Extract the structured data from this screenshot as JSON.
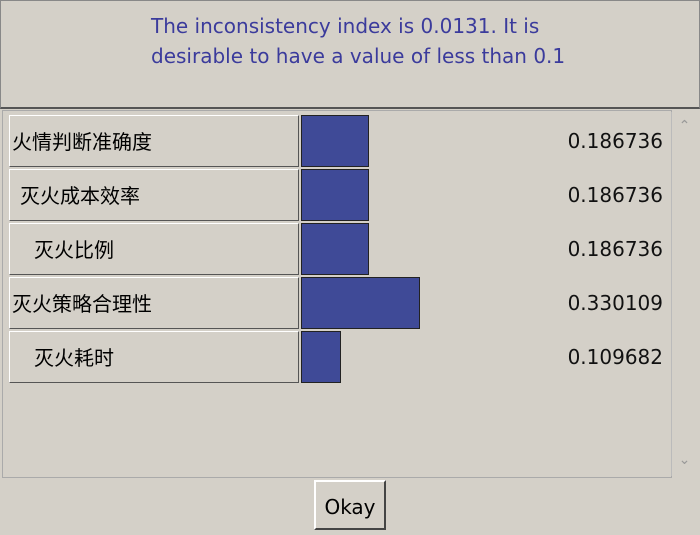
{
  "message": "The inconsistency index is 0.0131.  It is desirable to have a value of less than 0.1",
  "rows": [
    {
      "label": "火情判断准确度",
      "value": 0.186736
    },
    {
      "label": "灭火成本效率",
      "value": 0.186736
    },
    {
      "label": "灭火比例",
      "value": 0.186736
    },
    {
      "label": "灭火策略合理性",
      "value": 0.330109
    },
    {
      "label": "灭火耗时",
      "value": 0.109682
    }
  ],
  "button": "Okay"
}
